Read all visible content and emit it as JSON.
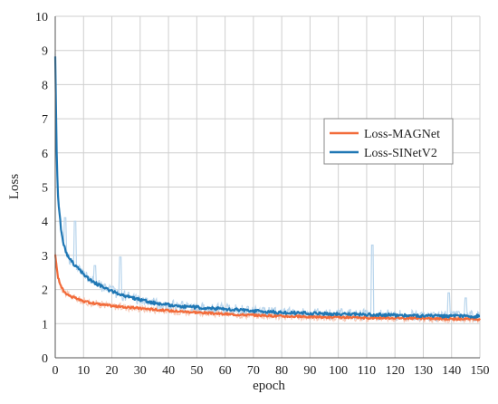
{
  "chart_data": {
    "type": "line",
    "title": "",
    "xlabel": "epoch",
    "ylabel": "Loss",
    "xlim": [
      0,
      150
    ],
    "ylim": [
      0,
      10
    ],
    "x_ticks": [
      0,
      10,
      20,
      30,
      40,
      50,
      60,
      70,
      80,
      90,
      100,
      110,
      120,
      130,
      140,
      150
    ],
    "y_ticks": [
      0,
      1,
      2,
      3,
      4,
      5,
      6,
      7,
      8,
      9,
      10
    ],
    "grid": true,
    "legend_position": "center-right",
    "series": [
      {
        "name": "Loss-MAGNet",
        "color": "#f26b3a",
        "raw_color": "#f7c9b6",
        "x": [
          0,
          1,
          2,
          3,
          4,
          5,
          7,
          10,
          15,
          20,
          25,
          30,
          40,
          50,
          60,
          70,
          80,
          90,
          100,
          110,
          120,
          130,
          140,
          150
        ],
        "values": [
          3.0,
          2.35,
          2.1,
          1.95,
          1.88,
          1.82,
          1.75,
          1.65,
          1.58,
          1.52,
          1.48,
          1.45,
          1.38,
          1.33,
          1.28,
          1.25,
          1.22,
          1.2,
          1.18,
          1.17,
          1.17,
          1.15,
          1.14,
          1.13
        ]
      },
      {
        "name": "Loss-SINetV2",
        "color": "#1f77b4",
        "raw_color": "#b9d5ec",
        "x": [
          0,
          0.5,
          1,
          2,
          3,
          4,
          5,
          7,
          10,
          12,
          15,
          20,
          25,
          30,
          35,
          40,
          45,
          50,
          60,
          70,
          80,
          90,
          100,
          110,
          120,
          130,
          140,
          150
        ],
        "values": [
          8.8,
          6.0,
          4.7,
          3.8,
          3.3,
          3.05,
          2.9,
          2.7,
          2.45,
          2.3,
          2.15,
          1.95,
          1.8,
          1.7,
          1.6,
          1.55,
          1.5,
          1.48,
          1.43,
          1.37,
          1.33,
          1.3,
          1.28,
          1.27,
          1.25,
          1.23,
          1.22,
          1.22
        ]
      }
    ],
    "spikes": {
      "Loss-SINetV2": [
        {
          "x": 3.5,
          "y": 4.1
        },
        {
          "x": 7,
          "y": 4.0
        },
        {
          "x": 14,
          "y": 2.7
        },
        {
          "x": 23,
          "y": 2.95
        },
        {
          "x": 112,
          "y": 3.3
        },
        {
          "x": 139,
          "y": 1.9
        },
        {
          "x": 145,
          "y": 1.75
        }
      ]
    }
  }
}
